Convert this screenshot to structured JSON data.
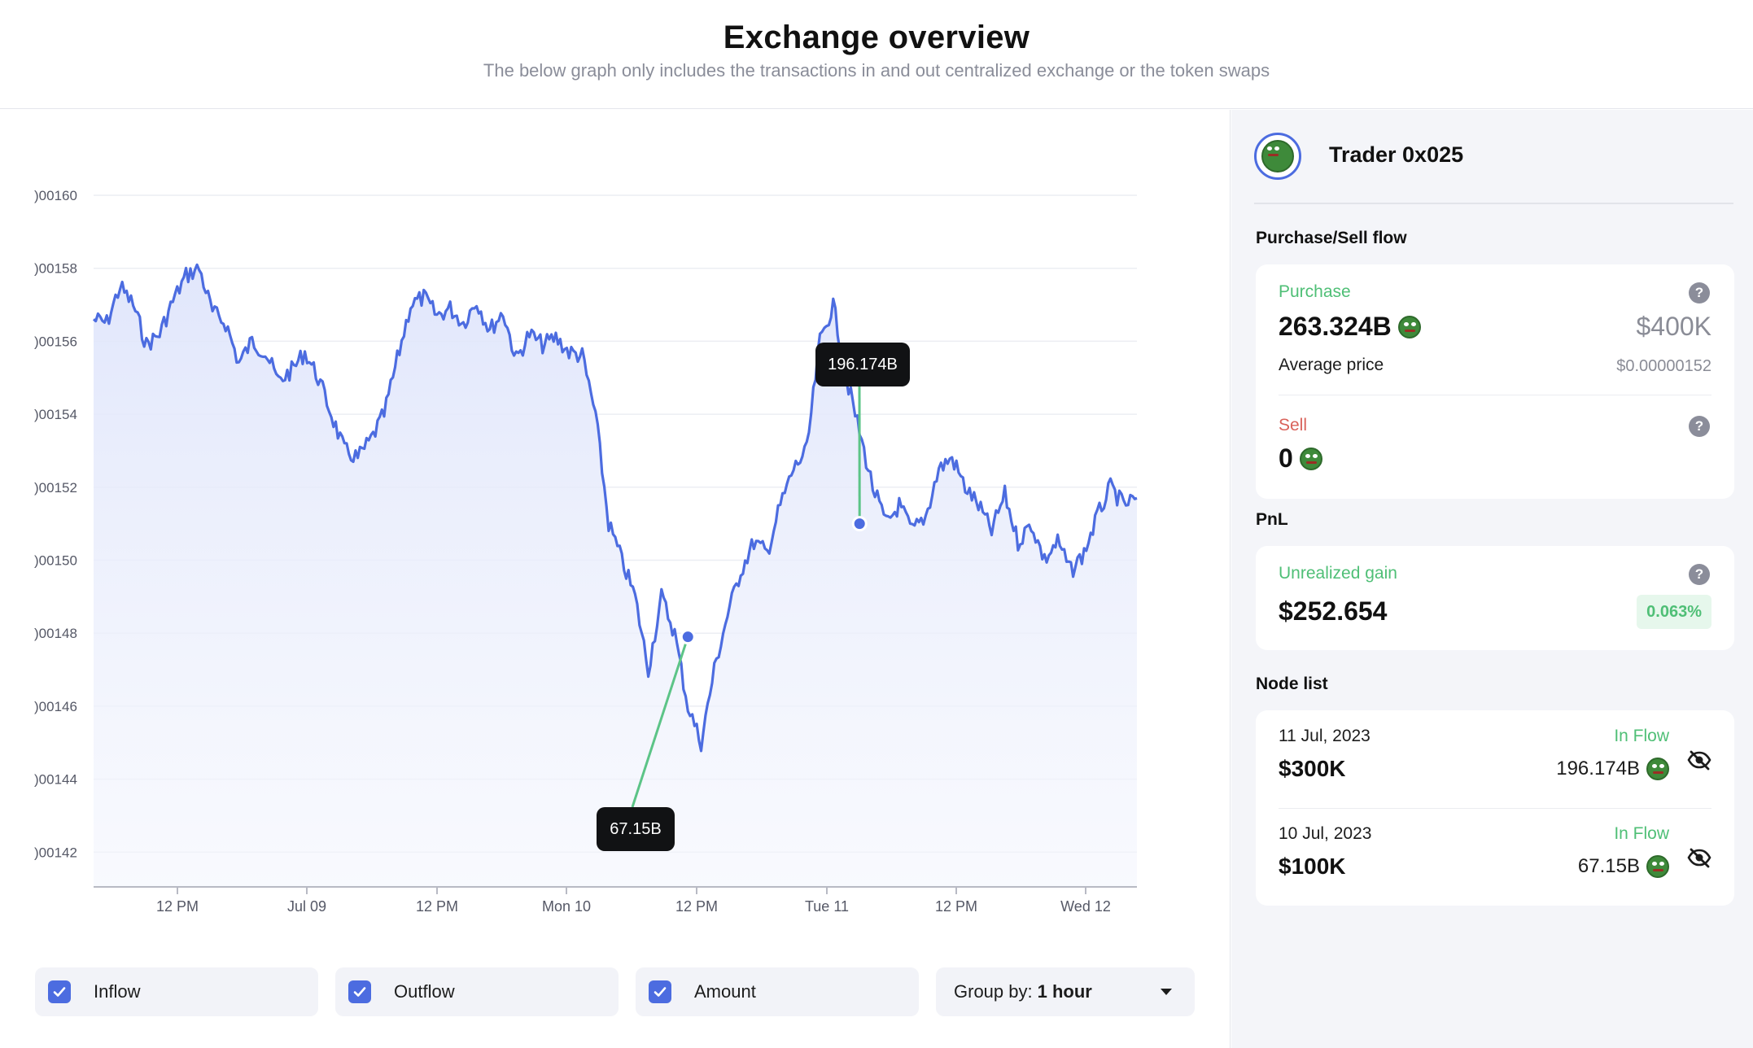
{
  "header": {
    "title": "Exchange overview",
    "subtitle": "The below graph only includes the transactions in and out centralized exchange or the token swaps"
  },
  "chart_data": {
    "type": "area",
    "x_ticks": [
      "12 PM",
      "Jul 09",
      "12 PM",
      "Mon 10",
      "12 PM",
      "Tue 11",
      "12 PM",
      "Wed 12"
    ],
    "y_ticks": [
      ")00160",
      ")00158",
      ")00156",
      ")00154",
      ")00152",
      ")00150",
      ")00148",
      ")00146",
      ")00144",
      ")00142"
    ],
    "ylim": [
      1.41e-06,
      1.6e-06
    ],
    "series": [
      {
        "values": [
          1.566e-06,
          1.565e-06,
          1.575e-06,
          1.57e-06,
          1.559e-06,
          1.562e-06,
          1.571e-06,
          1.578e-06,
          1.58e-06,
          1.568e-06,
          1.565e-06,
          1.554e-06,
          1.56e-06,
          1.557e-06,
          1.549e-06,
          1.552e-06,
          1.557e-06,
          1.55e-06,
          1.54e-06,
          1.53e-06,
          1.528e-06,
          1.533e-06,
          1.54e-06,
          1.555e-06,
          1.57e-06,
          1.572e-06,
          1.567e-06,
          1.569e-06,
          1.565e-06,
          1.571e-06,
          1.563e-06,
          1.568e-06,
          1.555e-06,
          1.562e-06,
          1.559e-06,
          1.561e-06,
          1.557e-06,
          1.556e-06,
          1.54e-06,
          1.51e-06,
          1.5e-06,
          1.49e-06,
          1.47e-06,
          1.49e-06,
          1.48e-06,
          1.46e-06,
          1.45e-06,
          1.47e-06,
          1.485e-06,
          1.497e-06,
          1.505e-06,
          1.502e-06,
          1.515e-06,
          1.525e-06,
          1.53e-06,
          1.56e-06,
          1.57e-06,
          1.55e-06,
          1.535e-06,
          1.52e-06,
          1.51e-06,
          1.515e-06,
          1.508e-06,
          1.512e-06,
          1.525e-06,
          1.528e-06,
          1.52e-06,
          1.515e-06,
          1.508e-06,
          1.518e-06,
          1.505e-06,
          1.51e-06,
          1.5e-06,
          1.505e-06,
          1.497e-06,
          1.502e-06,
          1.512e-06,
          1.52e-06,
          1.515e-06,
          1.517e-06
        ],
        "color": "#4c6ce0"
      }
    ],
    "annotations": [
      {
        "label": "196.174B",
        "x_index": 58,
        "value": 1.51e-06
      },
      {
        "label": "67.15B",
        "x_index": 45,
        "value": 1.479e-06
      }
    ],
    "grid": true
  },
  "controls": {
    "inflow_label": "Inflow",
    "outflow_label": "Outflow",
    "amount_label": "Amount",
    "group_by_label": "Group by:",
    "group_by_value": "1 hour"
  },
  "sidebar": {
    "trader_name": "Trader 0x025",
    "purchase_sell_title": "Purchase/Sell flow",
    "purchase": {
      "label": "Purchase",
      "amount": "263.324B",
      "usd": "$400K",
      "avg_price_label": "Average price",
      "avg_price_value": "$0.00000152"
    },
    "sell": {
      "label": "Sell",
      "amount": "0"
    },
    "pnl_title": "PnL",
    "pnl": {
      "label": "Unrealized gain",
      "value": "$252.654",
      "percent": "0.063%"
    },
    "node_list_title": "Node list",
    "nodes": [
      {
        "date": "11 Jul, 2023",
        "flow": "In Flow",
        "usd": "$300K",
        "amount": "196.174B"
      },
      {
        "date": "10 Jul, 2023",
        "flow": "In Flow",
        "usd": "$100K",
        "amount": "67.15B"
      }
    ]
  },
  "icons": {
    "help": "question-mark-icon",
    "hide": "eye-slash-icon",
    "token": "frog-token-icon",
    "dropdown": "caret-down-icon"
  },
  "help_glyph": "?"
}
